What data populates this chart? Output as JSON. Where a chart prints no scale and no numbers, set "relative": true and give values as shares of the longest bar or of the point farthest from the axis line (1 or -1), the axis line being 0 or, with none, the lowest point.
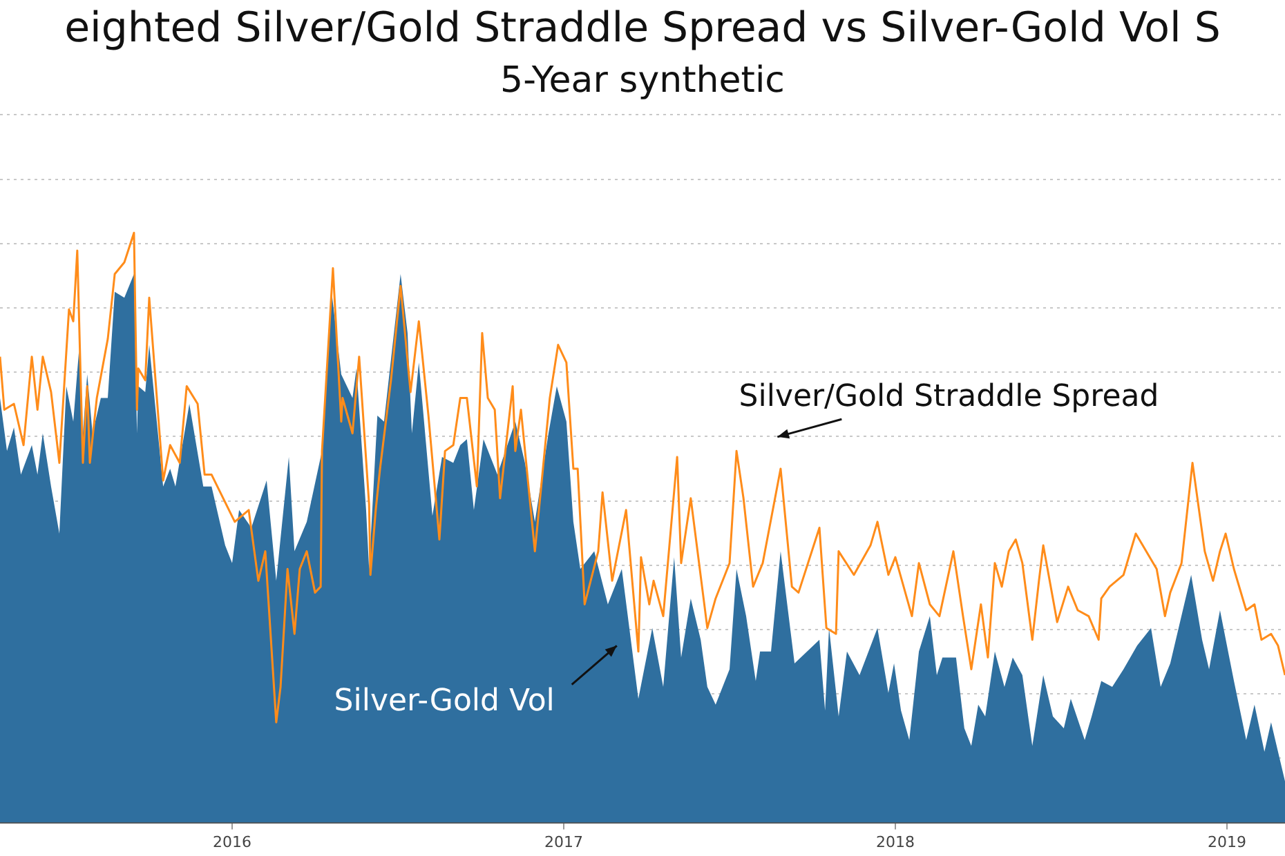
{
  "chart_data": {
    "type": "line",
    "title": "eighted Silver/Gold Straddle Spread vs Silver-Gold Vol S",
    "subtitle": "5-Year synthetic",
    "relative": true,
    "xlim": [
      2015.3,
      2019.175
    ],
    "xticks": [
      2016,
      2017,
      2018,
      2019
    ],
    "grid": "y",
    "legend": false,
    "marker": "none",
    "series": [
      {
        "name": "Silver-Gold Vol",
        "type": "area",
        "color": "#2f6f9f",
        "x": [
          2015.3,
          2015.321,
          2015.342,
          2015.363,
          2015.396,
          2015.413,
          2015.429,
          2015.454,
          2015.479,
          2015.5,
          2015.521,
          2015.538,
          2015.55,
          2015.563,
          2015.579,
          2015.604,
          2015.625,
          2015.646,
          2015.675,
          2015.704,
          2015.713,
          2015.717,
          2015.738,
          2015.75,
          2015.792,
          2015.813,
          2015.829,
          2015.871,
          2015.913,
          2015.938,
          2015.979,
          2016.0,
          2016.021,
          2016.058,
          2016.104,
          2016.133,
          2016.171,
          2016.188,
          2016.225,
          2016.271,
          2016.3,
          2016.329,
          2016.363,
          2016.375,
          2016.404,
          2016.413,
          2016.438,
          2016.458,
          2016.508,
          2016.529,
          2016.542,
          2016.563,
          2016.604,
          2016.633,
          2016.667,
          2016.688,
          2016.708,
          2016.729,
          2016.758,
          2016.8,
          2016.842,
          2016.854,
          2016.883,
          2016.913,
          2016.954,
          2016.979,
          2017.008,
          2017.029,
          2017.05,
          2017.092,
          2017.133,
          2017.175,
          2017.225,
          2017.246,
          2017.267,
          2017.3,
          2017.333,
          2017.354,
          2017.383,
          2017.413,
          2017.433,
          2017.458,
          2017.5,
          2017.521,
          2017.55,
          2017.579,
          2017.592,
          2017.625,
          2017.654,
          2017.696,
          2017.771,
          2017.788,
          2017.8,
          2017.829,
          2017.854,
          2017.892,
          2017.946,
          2017.979,
          2017.996,
          2018.017,
          2018.042,
          2018.071,
          2018.104,
          2018.125,
          2018.142,
          2018.183,
          2018.208,
          2018.229,
          2018.25,
          2018.271,
          2018.3,
          2018.329,
          2018.354,
          2018.383,
          2018.413,
          2018.446,
          2018.475,
          2018.508,
          2018.529,
          2018.571,
          2018.592,
          2018.621,
          2018.654,
          2018.688,
          2018.729,
          2018.771,
          2018.8,
          2018.829,
          2018.892,
          2018.925,
          2018.946,
          2018.979,
          2019.021,
          2019.058,
          2019.083,
          2019.113,
          2019.133,
          2019.175
        ],
        "values": [
          0.72,
          0.63,
          0.67,
          0.59,
          0.64,
          0.59,
          0.66,
          0.57,
          0.49,
          0.74,
          0.68,
          0.8,
          0.66,
          0.76,
          0.66,
          0.72,
          0.72,
          0.9,
          0.89,
          0.93,
          0.66,
          0.74,
          0.73,
          0.81,
          0.57,
          0.6,
          0.57,
          0.71,
          0.57,
          0.57,
          0.47,
          0.44,
          0.53,
          0.5,
          0.58,
          0.41,
          0.62,
          0.46,
          0.51,
          0.63,
          0.9,
          0.76,
          0.72,
          0.77,
          0.53,
          0.43,
          0.69,
          0.68,
          0.93,
          0.83,
          0.66,
          0.78,
          0.52,
          0.62,
          0.61,
          0.64,
          0.65,
          0.53,
          0.65,
          0.59,
          0.66,
          0.68,
          0.61,
          0.51,
          0.66,
          0.74,
          0.68,
          0.51,
          0.43,
          0.46,
          0.37,
          0.43,
          0.21,
          0.27,
          0.33,
          0.23,
          0.45,
          0.28,
          0.38,
          0.31,
          0.23,
          0.2,
          0.26,
          0.43,
          0.35,
          0.24,
          0.29,
          0.29,
          0.46,
          0.27,
          0.31,
          0.19,
          0.33,
          0.18,
          0.29,
          0.25,
          0.33,
          0.22,
          0.27,
          0.19,
          0.14,
          0.29,
          0.35,
          0.25,
          0.28,
          0.28,
          0.16,
          0.13,
          0.2,
          0.18,
          0.29,
          0.23,
          0.28,
          0.25,
          0.13,
          0.25,
          0.18,
          0.16,
          0.21,
          0.14,
          0.18,
          0.24,
          0.23,
          0.26,
          0.3,
          0.33,
          0.23,
          0.27,
          0.42,
          0.31,
          0.26,
          0.36,
          0.24,
          0.14,
          0.2,
          0.12,
          0.17,
          0.07
        ]
      },
      {
        "name": "Silver/Gold Straddle Spread",
        "type": "line",
        "color": "#ff8c1a",
        "x": [
          2015.3,
          2015.313,
          2015.342,
          2015.371,
          2015.396,
          2015.413,
          2015.429,
          2015.454,
          2015.479,
          2015.508,
          2015.521,
          2015.533,
          2015.55,
          2015.563,
          2015.571,
          2015.592,
          2015.625,
          2015.646,
          2015.675,
          2015.704,
          2015.713,
          2015.717,
          2015.738,
          2015.75,
          2015.792,
          2015.813,
          2015.842,
          2015.863,
          2015.896,
          2015.917,
          2015.938,
          2016.008,
          2016.05,
          2016.079,
          2016.1,
          2016.133,
          2016.146,
          2016.167,
          2016.188,
          2016.204,
          2016.225,
          2016.25,
          2016.267,
          2016.271,
          2016.304,
          2016.329,
          2016.333,
          2016.363,
          2016.383,
          2016.413,
          2016.417,
          2016.433,
          2016.446,
          2016.479,
          2016.508,
          2016.538,
          2016.563,
          2016.592,
          2016.625,
          2016.642,
          2016.667,
          2016.688,
          2016.708,
          2016.738,
          2016.754,
          2016.771,
          2016.792,
          2016.808,
          2016.846,
          2016.854,
          2016.871,
          2016.913,
          2016.958,
          2016.983,
          2017.008,
          2017.029,
          2017.042,
          2017.063,
          2017.104,
          2017.117,
          2017.146,
          2017.188,
          2017.225,
          2017.233,
          2017.258,
          2017.271,
          2017.3,
          2017.342,
          2017.354,
          2017.383,
          2017.433,
          2017.458,
          2017.5,
          2017.521,
          2017.542,
          2017.571,
          2017.6,
          2017.654,
          2017.688,
          2017.708,
          2017.771,
          2017.792,
          2017.821,
          2017.829,
          2017.875,
          2017.925,
          2017.946,
          2017.979,
          2018.0,
          2018.05,
          2018.071,
          2018.104,
          2018.133,
          2018.175,
          2018.204,
          2018.229,
          2018.258,
          2018.279,
          2018.3,
          2018.321,
          2018.342,
          2018.363,
          2018.383,
          2018.413,
          2018.433,
          2018.446,
          2018.488,
          2018.521,
          2018.55,
          2018.583,
          2018.613,
          2018.621,
          2018.646,
          2018.688,
          2018.725,
          2018.746,
          2018.788,
          2018.813,
          2018.829,
          2018.863,
          2018.896,
          2018.933,
          2018.958,
          2018.979,
          2018.996,
          2019.021,
          2019.058,
          2019.083,
          2019.104,
          2019.133,
          2019.154,
          2019.175
        ],
        "values": [
          0.79,
          0.7,
          0.71,
          0.64,
          0.79,
          0.7,
          0.79,
          0.73,
          0.61,
          0.87,
          0.85,
          0.97,
          0.61,
          0.74,
          0.61,
          0.72,
          0.82,
          0.93,
          0.95,
          1,
          0.7,
          0.77,
          0.75,
          0.89,
          0.58,
          0.64,
          0.61,
          0.74,
          0.71,
          0.59,
          0.59,
          0.51,
          0.53,
          0.41,
          0.46,
          0.17,
          0.23,
          0.43,
          0.32,
          0.43,
          0.46,
          0.39,
          0.4,
          0.63,
          0.94,
          0.68,
          0.72,
          0.66,
          0.79,
          0.54,
          0.42,
          0.53,
          0.6,
          0.75,
          0.91,
          0.73,
          0.85,
          0.69,
          0.48,
          0.63,
          0.64,
          0.72,
          0.72,
          0.57,
          0.83,
          0.72,
          0.7,
          0.55,
          0.74,
          0.63,
          0.7,
          0.46,
          0.72,
          0.81,
          0.78,
          0.6,
          0.6,
          0.37,
          0.46,
          0.56,
          0.41,
          0.53,
          0.29,
          0.45,
          0.37,
          0.41,
          0.35,
          0.62,
          0.44,
          0.55,
          0.33,
          0.38,
          0.44,
          0.63,
          0.55,
          0.4,
          0.44,
          0.6,
          0.4,
          0.39,
          0.5,
          0.33,
          0.32,
          0.46,
          0.42,
          0.47,
          0.51,
          0.42,
          0.45,
          0.35,
          0.44,
          0.37,
          0.35,
          0.46,
          0.35,
          0.26,
          0.37,
          0.28,
          0.44,
          0.4,
          0.46,
          0.48,
          0.44,
          0.31,
          0.41,
          0.47,
          0.34,
          0.4,
          0.36,
          0.35,
          0.31,
          0.38,
          0.4,
          0.42,
          0.49,
          0.47,
          0.43,
          0.35,
          0.39,
          0.44,
          0.61,
          0.46,
          0.41,
          0.46,
          0.49,
          0.43,
          0.36,
          0.37,
          0.31,
          0.32,
          0.3,
          0.25
        ]
      }
    ]
  }
}
